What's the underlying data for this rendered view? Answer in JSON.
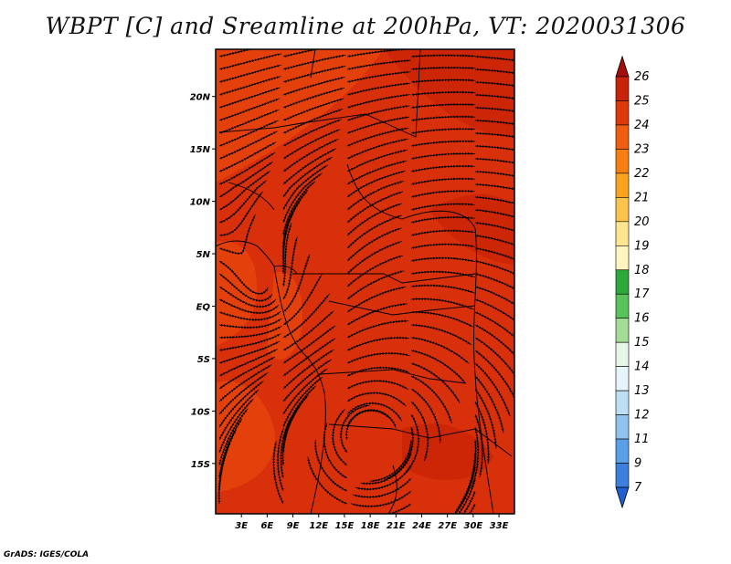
{
  "title": "WBPT [C] and Sreamline at 200hPa, VT: 2020031306",
  "footer": "GrADS: IGES/COLA",
  "map": {
    "lat_labels": [
      "20N",
      "15N",
      "10N",
      "5N",
      "EQ",
      "5S",
      "10S",
      "15S"
    ],
    "lat_values": [
      20,
      15,
      10,
      5,
      0,
      -5,
      -10,
      -15
    ],
    "lon_labels": [
      "3E",
      "6E",
      "9E",
      "12E",
      "15E",
      "18E",
      "21E",
      "24E",
      "27E",
      "30E",
      "33E"
    ],
    "lon_values": [
      3,
      6,
      9,
      12,
      15,
      18,
      21,
      24,
      27,
      30,
      33
    ],
    "lon_range": [
      0,
      34.8
    ],
    "lat_range": [
      -19.8,
      24.5
    ],
    "base_color": "#d8300a",
    "warm_color": "#ee4f0c",
    "hot_color": "#c51f05"
  },
  "colorbar": {
    "labels": [
      "26",
      "25",
      "24",
      "23",
      "22",
      "21",
      "20",
      "19",
      "18",
      "17",
      "16",
      "15",
      "14",
      "13",
      "12",
      "11",
      "9",
      "7"
    ],
    "colors": [
      "#a50f0b",
      "#c8230b",
      "#dc3a0c",
      "#ee5d10",
      "#f57f11",
      "#f9a321",
      "#fcc44f",
      "#fde68f",
      "#fff6bf",
      "#2ea83a",
      "#59c25b",
      "#a3dc95",
      "#e5f7e6",
      "#e6f4fb",
      "#bddff5",
      "#8fc3ee",
      "#5ba0e6",
      "#3c7fdc",
      "#1f5fd2"
    ]
  }
}
